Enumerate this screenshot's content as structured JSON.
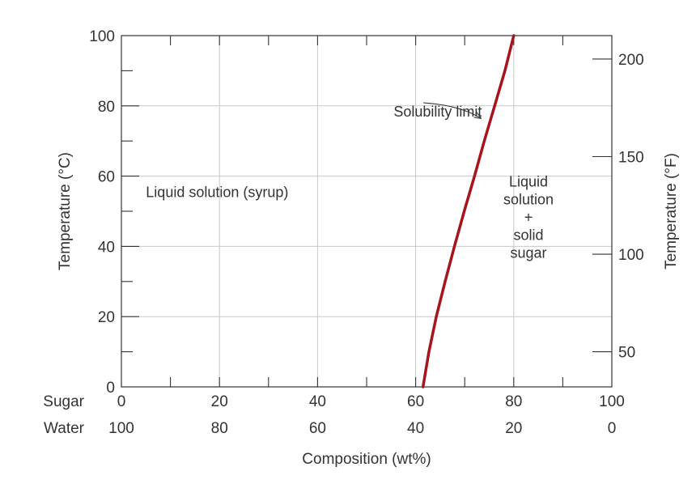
{
  "chart_data": {
    "type": "line",
    "title": "",
    "xlabel": "Composition (wt%)",
    "ylabel": "Temperature (°C)",
    "ylabel_right": "Temperature (°F)",
    "xlim": [
      0,
      100
    ],
    "ylim": [
      0,
      100
    ],
    "y2lim": [
      32,
      212
    ],
    "grid": true,
    "x_rows": [
      {
        "label": "Sugar",
        "ticks": [
          "0",
          "20",
          "40",
          "60",
          "80",
          "100"
        ]
      },
      {
        "label": "Water",
        "ticks": [
          "100",
          "80",
          "60",
          "40",
          "20",
          "0"
        ]
      }
    ],
    "y_ticks": [
      "0",
      "20",
      "40",
      "60",
      "80",
      "100"
    ],
    "y2_ticks": [
      {
        "value": 50,
        "label": "50"
      },
      {
        "value": 100,
        "label": "100"
      },
      {
        "value": 150,
        "label": "150"
      },
      {
        "value": 200,
        "label": "200"
      }
    ],
    "series": [
      {
        "name": "Solubility limit",
        "color": "#a8141c",
        "x": [
          61.5,
          62.7,
          64.2,
          66.0,
          67.9,
          69.9,
          72.0,
          74.0,
          76.1,
          78.2,
          80.0
        ],
        "y": [
          0,
          10,
          20,
          30,
          40,
          50,
          60,
          70,
          80,
          90,
          100
        ]
      }
    ],
    "annotations": [
      {
        "text": "Solubility limit",
        "at": [
          73.5,
          77
        ]
      },
      {
        "text": "Liquid solution (syrup)",
        "at": [
          5,
          54
        ]
      },
      {
        "lines": [
          "Liquid",
          "solution",
          "+",
          "solid",
          "sugar"
        ],
        "at": [
          83,
          57
        ]
      }
    ]
  }
}
